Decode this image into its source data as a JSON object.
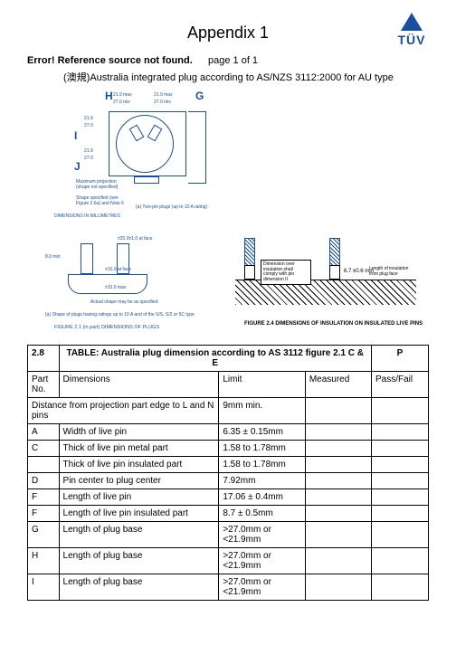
{
  "title": "Appendix 1",
  "logo": {
    "text": "TÜV",
    "color": "#1a4e9e"
  },
  "error_line": {
    "left": "Error! Reference source not found.",
    "page": "page 1 of 1"
  },
  "subtitle": "(澳規)Australia integrated plug according to AS/NZS 3112:2000 for AU type",
  "diagram1": {
    "letters": {
      "H": "H",
      "G": "G",
      "I": "I",
      "J": "J"
    },
    "dims": [
      "21.9 max",
      "27.0 mix",
      "21.9 max",
      "27.0 mix",
      "21.9",
      "27.0",
      "21.9",
      "27.0"
    ],
    "notes": [
      "Maximum projection (shape not specified)",
      "Shape specified (see Figure 2.6a) and Note 6",
      "(a) Two-pin plugs (up to 10 A rating)"
    ],
    "footer": "DIMENSIONS IN MILLIMETRES"
  },
  "diagram2": {
    "dims": [
      "8.0 min",
      "±20.0±1.0 at face",
      "±10.0 at face",
      "±10.0 max"
    ],
    "note1": "(a) Shape of plugs having ratings up to 10 A and of the S/S, S/2 or 5C type",
    "note2": "Actual shape may be as specified",
    "box_note": "Dimension over insulation shall comply with pin dimension II",
    "right_dim": "6.7 ±0.6 mm",
    "right_label": "Length of insulation from plug face",
    "caption_left": "FIGURE 2.1 (in part) DIMENSIONS OF PLUGS",
    "caption_right": "FIGURE 2.4 DIMENSIONS OF INSULATION ON INSULATED LIVE PINS"
  },
  "table": {
    "header_num": "2.8",
    "header_title": "TABLE:  Australia plug dimension according to AS 3112 figure 2.1 C & E",
    "header_p": "P",
    "cols": [
      "Part No.",
      "Dimensions",
      "Limit",
      "Measured",
      "Pass/Fail"
    ],
    "span_row": {
      "label": "Distance from projection part edge to L and N pins",
      "limit": "9mm min."
    },
    "rows": [
      {
        "p": "A",
        "d": "Width of live pin",
        "l": "6.35 ± 0.15mm"
      },
      {
        "p": "C",
        "d": "Thick of live pin metal part",
        "l": "1.58 to 1.78mm"
      },
      {
        "p": "",
        "d": "Thick of live pin insulated part",
        "l": "1.58 to 1.78mm"
      },
      {
        "p": "D",
        "d": "Pin center to plug center",
        "l": "7.92mm"
      },
      {
        "p": "F",
        "d": "Length of live pin",
        "l": "17.06 ± 0.4mm"
      },
      {
        "p": "F",
        "d": "Length of live pin insulated part",
        "l": "8.7 ± 0.5mm"
      },
      {
        "p": "G",
        "d": "Length of plug base",
        "l": ">27.0mm or <21.9mm"
      },
      {
        "p": "H",
        "d": "Length of plug base",
        "l": ">27.0mm or <21.9mm"
      },
      {
        "p": "I",
        "d": "Length of plug base",
        "l": ">27.0mm or <21.9mm"
      }
    ]
  }
}
